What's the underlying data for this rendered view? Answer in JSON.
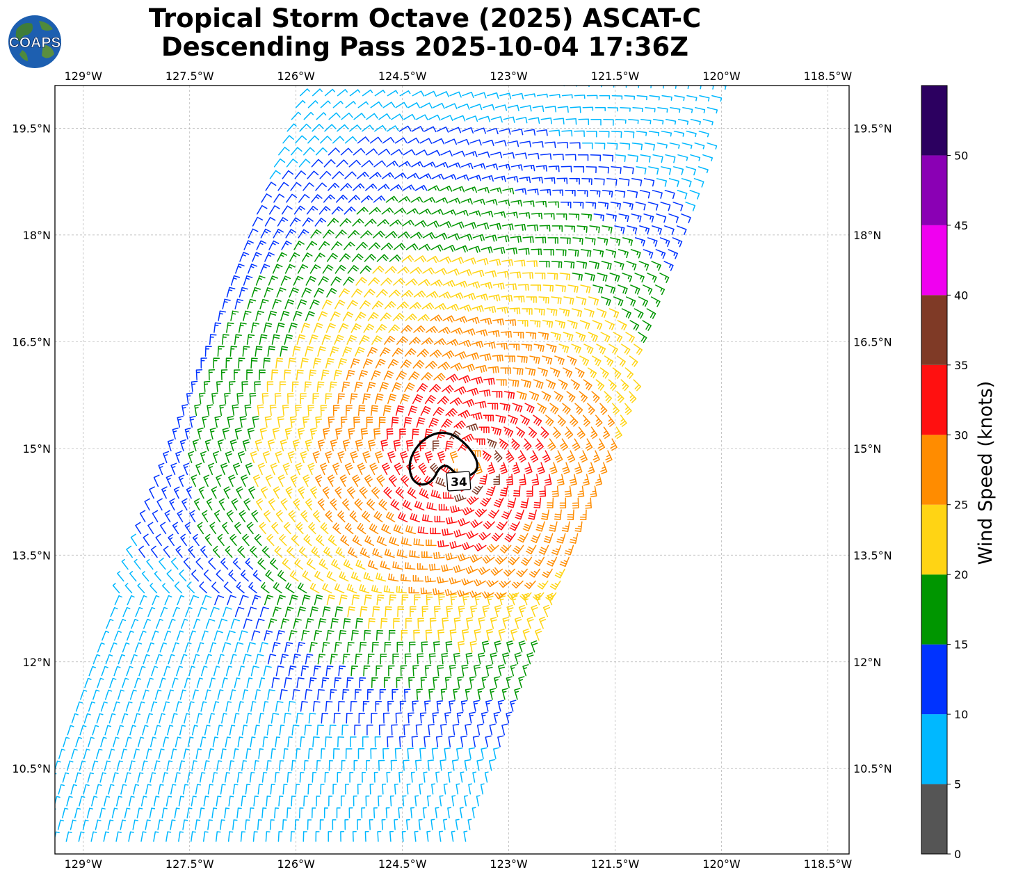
{
  "title": {
    "line1": "Tropical Storm Octave (2025) ASCAT-C",
    "line2": "Descending Pass 2025-10-04 17:36Z"
  },
  "logo": {
    "text": "COAPS",
    "icon": "globe-icon"
  },
  "map": {
    "lon_labels": [
      "129°W",
      "127.5°W",
      "126°W",
      "124.5°W",
      "123°W",
      "121.5°W",
      "120°W",
      "118.5°W"
    ],
    "lat_labels": [
      "19.5°N",
      "18°N",
      "16.5°N",
      "15°N",
      "13.5°N",
      "12°N",
      "10.5°N"
    ],
    "contour_label": "34",
    "lon_range": [
      -129.4,
      -118.2
    ],
    "lat_range": [
      9.3,
      20.1
    ],
    "grid": true,
    "storm_center": {
      "lon": -123.6,
      "lat": 14.8
    }
  },
  "colorbar": {
    "label": "Wind Speed (knots)",
    "ticks": [
      "0",
      "5",
      "10",
      "15",
      "20",
      "25",
      "30",
      "35",
      "40",
      "45",
      "50"
    ],
    "bins": [
      {
        "min": 0,
        "max": 5,
        "color": "#555555"
      },
      {
        "min": 5,
        "max": 10,
        "color": "#00b8ff"
      },
      {
        "min": 10,
        "max": 15,
        "color": "#0033ff"
      },
      {
        "min": 15,
        "max": 20,
        "color": "#009600"
      },
      {
        "min": 20,
        "max": 25,
        "color": "#ffd414"
      },
      {
        "min": 25,
        "max": 30,
        "color": "#ff8c00"
      },
      {
        "min": 30,
        "max": 35,
        "color": "#ff1010"
      },
      {
        "min": 35,
        "max": 40,
        "color": "#7f3a26"
      },
      {
        "min": 40,
        "max": 45,
        "color": "#f000f0"
      },
      {
        "min": 45,
        "max": 50,
        "color": "#8a00b4"
      },
      {
        "min": 50,
        "max": 55,
        "color": "#2c0060"
      }
    ]
  }
}
